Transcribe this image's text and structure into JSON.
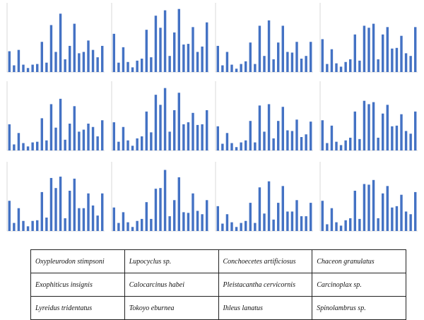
{
  "colors": {
    "bar": "#4472c4",
    "axis": "#bfbfbf",
    "text": "#222222",
    "border": "#222222"
  },
  "legend": {
    "rows": [
      [
        "Oxypleurodon stimpsoni",
        "Lupocyclus sp.",
        "Conchoecetes artificiosus",
        "Chaceon granulatus"
      ],
      [
        "Exophiticus insignis",
        "Calocarcinus habei",
        "Pleistacantha cervicornis",
        "Carcinoplax sp."
      ],
      [
        "Lyreidus tridentatus",
        "Tokoyo eburnea",
        "Ihleus lanatus",
        "Spinolambrus sp."
      ]
    ]
  },
  "chart_data": [
    {
      "type": "bar",
      "values": [
        155,
        50,
        165,
        55,
        30,
        55,
        60,
        225,
        70,
        350,
        150,
        435,
        95,
        195,
        360,
        140,
        150,
        235,
        165,
        110,
        195
      ]
    },
    {
      "type": "bar",
      "values": [
        285,
        70,
        185,
        75,
        35,
        85,
        100,
        315,
        110,
        420,
        330,
        460,
        120,
        295,
        470,
        205,
        210,
        335,
        150,
        190,
        370
      ]
    },
    {
      "type": "bar",
      "values": [
        195,
        50,
        150,
        55,
        25,
        60,
        80,
        220,
        60,
        345,
        120,
        385,
        95,
        220,
        345,
        150,
        145,
        225,
        100,
        120,
        225
      ]
    },
    {
      "type": "bar",
      "values": [
        245,
        60,
        170,
        65,
        40,
        75,
        95,
        280,
        85,
        345,
        330,
        360,
        95,
        280,
        335,
        175,
        180,
        270,
        140,
        120,
        335
      ]
    },
    {
      "type": "bar",
      "values": [
        195,
        45,
        130,
        55,
        30,
        60,
        65,
        240,
        75,
        345,
        170,
        385,
        80,
        200,
        330,
        140,
        155,
        200,
        175,
        105,
        225
      ]
    },
    {
      "type": "bar",
      "values": [
        210,
        65,
        175,
        75,
        35,
        90,
        105,
        290,
        135,
        415,
        340,
        465,
        140,
        300,
        430,
        195,
        210,
        280,
        190,
        195,
        300
      ]
    },
    {
      "type": "bar",
      "values": [
        180,
        50,
        130,
        55,
        25,
        60,
        75,
        220,
        60,
        335,
        140,
        345,
        90,
        220,
        325,
        150,
        145,
        230,
        100,
        120,
        215
      ]
    },
    {
      "type": "bar",
      "values": [
        225,
        55,
        185,
        65,
        40,
        75,
        95,
        290,
        85,
        370,
        345,
        360,
        95,
        275,
        340,
        180,
        185,
        270,
        145,
        125,
        290
      ]
    },
    {
      "type": "bar",
      "values": [
        225,
        60,
        170,
        75,
        35,
        75,
        80,
        290,
        100,
        395,
        320,
        405,
        95,
        300,
        390,
        170,
        170,
        280,
        190,
        115,
        280
      ]
    },
    {
      "type": "bar",
      "values": [
        175,
        60,
        140,
        65,
        30,
        75,
        90,
        215,
        90,
        315,
        320,
        455,
        110,
        230,
        400,
        140,
        135,
        280,
        150,
        125,
        230
      ]
    },
    {
      "type": "bar",
      "values": [
        185,
        55,
        125,
        65,
        30,
        60,
        75,
        210,
        60,
        325,
        130,
        370,
        85,
        210,
        335,
        145,
        145,
        230,
        110,
        110,
        210
      ]
    },
    {
      "type": "bar",
      "values": [
        225,
        50,
        170,
        65,
        40,
        80,
        95,
        300,
        90,
        350,
        345,
        380,
        95,
        280,
        335,
        175,
        185,
        270,
        145,
        125,
        290
      ]
    }
  ]
}
